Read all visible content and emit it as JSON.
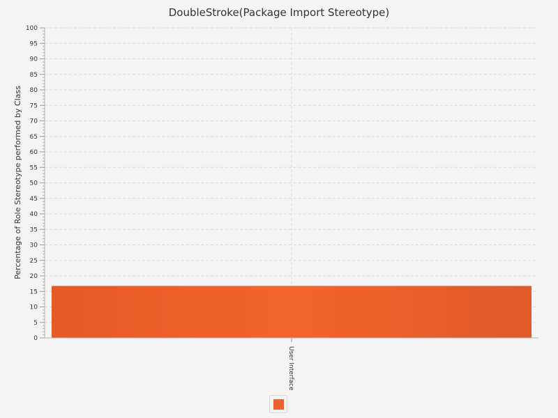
{
  "chart_data": {
    "type": "bar",
    "title": "DoubleStroke(Package Import Stereotype)",
    "xlabel": "",
    "ylabel": "Percentage of Role Stereotype performed by Class",
    "categories": [
      "User Interface"
    ],
    "series": [
      {
        "values": [
          16.7
        ],
        "color": "#f0622c"
      }
    ],
    "ylim": [
      0,
      100
    ],
    "yticks": [
      0,
      5,
      10,
      15,
      20,
      25,
      30,
      35,
      40,
      45,
      50,
      55,
      60,
      65,
      70,
      75,
      80,
      85,
      90,
      95,
      100
    ],
    "grid": true,
    "legend": "bottom-center"
  }
}
